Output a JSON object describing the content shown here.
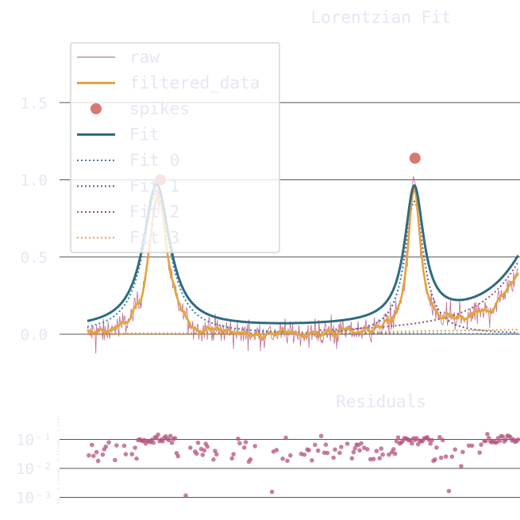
{
  "chart_data": [
    {
      "type": "line",
      "title": "Lorentzian Fit",
      "xlabel": "",
      "ylabel": "",
      "xlim": [
        0,
        560
      ],
      "ylim": [
        -0.27,
        1.92
      ],
      "yticks": [
        0.0,
        0.5,
        1.0,
        1.5
      ],
      "ytick_labels": [
        "0.0",
        "0.5",
        "1.0",
        "1.5"
      ],
      "grid": "horizontal",
      "legend_position": "top-left",
      "legend": [
        "raw",
        "filtered_data",
        "spikes",
        "Fit",
        "Fit 0",
        "Fit 1",
        "Fit 2",
        "Fit 3"
      ],
      "peaks": [
        {
          "center": 90,
          "width": 21,
          "amplitude": 0.93,
          "baseline": 0.0
        },
        {
          "center": 425,
          "width": 15,
          "amplitude": 0.86,
          "baseline": 0.0
        },
        {
          "center": 610,
          "width": 55,
          "amplitude": 0.9,
          "baseline": 0.0
        }
      ],
      "spikes": [
        {
          "x": 95,
          "y": 1.0
        },
        {
          "x": 426,
          "y": 1.14
        }
      ],
      "colors": {
        "raw": "#b5537f",
        "filtered_data": "#e5a33a",
        "spikes": "#d97777",
        "Fit": "#2f6b80",
        "Fit 0": "#3e7fa8",
        "Fit 1": "#5a5a9a",
        "Fit 2": "#a54d6f",
        "Fit 3": "#e5a33a"
      }
    },
    {
      "type": "scatter",
      "title": "Residuals",
      "xlabel": "",
      "ylabel": "",
      "xlim": [
        0,
        560
      ],
      "yscale": "log",
      "ylim": [
        0.0004,
        0.5
      ],
      "yticks": [
        0.001,
        0.01,
        0.1
      ],
      "ytick_labels": [
        "10⁻³",
        "10⁻²",
        "10⁻¹"
      ],
      "grid": "horizontal",
      "color": "#b5537f"
    }
  ]
}
